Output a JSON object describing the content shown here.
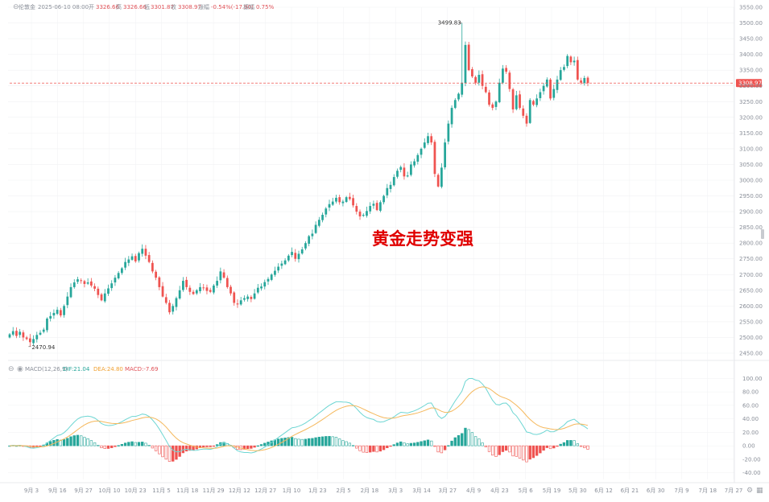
{
  "colors": {
    "up": "#26a69a",
    "down": "#ef5350",
    "dif": "#6ed6d3",
    "dea": "#f5b85c",
    "price_line": "#ef5350",
    "grid": "#f0f1f3",
    "axis_text": "#8a8f99",
    "headline": "#e00000"
  },
  "header": {
    "symbol": "伦敦金",
    "datetime": "2025-06-10 08:00",
    "open_label": "开",
    "open": "3326.66",
    "high_label": "高",
    "high": "3326.66",
    "low_label": "低",
    "low": "3301.87",
    "close_label": "收",
    "close": "3308.97",
    "change_label": "涨幅",
    "change": "-0.54%(-17.90)",
    "amplitude_label": "振幅",
    "amplitude": "0.75%"
  },
  "macd_header": {
    "name": "MACD(12,26,9)",
    "dif": "DIF:21.04",
    "dea": "DEA:24.80",
    "macd": "MACD:-7.69"
  },
  "headline": "黄金走势变强",
  "annotations": {
    "high": "3499.83",
    "low": "2470.94",
    "last_price": "3308.97"
  },
  "icons": [
    "chevron-icon",
    "eye-icon",
    "gear-icon",
    "scroll-handle-icon"
  ],
  "chart_data": [
    {
      "type": "candlestick",
      "title": "伦敦金",
      "ylim": [
        2450,
        3550
      ],
      "y_ticks": [
        "3550.00",
        "3500.00",
        "3450.00",
        "3400.00",
        "3350.00",
        "3300.00",
        "3250.00",
        "3200.00",
        "3150.00",
        "3100.00",
        "3050.00",
        "3000.00",
        "2950.00",
        "2900.00",
        "2850.00",
        "2800.00",
        "2750.00",
        "2700.00",
        "2650.00",
        "2600.00",
        "2550.00",
        "2500.00",
        "2450.00"
      ],
      "x_ticks": [
        "9月 3",
        "9月 16",
        "9月 27",
        "10月 10",
        "10月 23",
        "11月 5",
        "11月 18",
        "11月 29",
        "12月 12",
        "12月 27",
        "1月 10",
        "1月 23",
        "2月 5",
        "2月 18",
        "3月 3",
        "3月 14",
        "3月 27",
        "4月 9",
        "4月 23",
        "5月 6",
        "5月 19",
        "5月 30",
        "6月 12",
        "6月 21",
        "6月 30",
        "7月 9",
        "7月 18",
        "7月 27"
      ],
      "last_price": 3308.97,
      "marked_high": 3499.83,
      "marked_low": 2470.94,
      "close_series": [
        2510,
        2520,
        2505,
        2518,
        2500,
        2495,
        2485,
        2495,
        2508,
        2515,
        2525,
        2560,
        2568,
        2578,
        2588,
        2570,
        2600,
        2630,
        2660,
        2675,
        2685,
        2680,
        2670,
        2675,
        2665,
        2655,
        2635,
        2618,
        2640,
        2656,
        2672,
        2690,
        2705,
        2720,
        2740,
        2748,
        2758,
        2742,
        2768,
        2782,
        2760,
        2740,
        2710,
        2690,
        2660,
        2630,
        2610,
        2580,
        2600,
        2625,
        2650,
        2680,
        2660,
        2645,
        2638,
        2650,
        2660,
        2658,
        2648,
        2645,
        2665,
        2680,
        2710,
        2690,
        2660,
        2640,
        2610,
        2605,
        2618,
        2625,
        2630,
        2622,
        2640,
        2658,
        2662,
        2676,
        2686,
        2700,
        2712,
        2725,
        2735,
        2745,
        2760,
        2772,
        2750,
        2766,
        2780,
        2800,
        2822,
        2830,
        2858,
        2874,
        2890,
        2910,
        2924,
        2932,
        2944,
        2930,
        2932,
        2946,
        2940,
        2920,
        2900,
        2885,
        2890,
        2902,
        2918,
        2925,
        2905,
        2930,
        2950,
        2975,
        2985,
        3010,
        3030,
        3042,
        3012,
        3015,
        3050,
        3060,
        3080,
        3100,
        3120,
        3140,
        3120,
        3020,
        2980,
        3040,
        3120,
        3180,
        3230,
        3255,
        3275,
        3310,
        3430,
        3350,
        3330,
        3310,
        3335,
        3300,
        3280,
        3240,
        3230,
        3250,
        3310,
        3355,
        3345,
        3290,
        3225,
        3270,
        3230,
        3205,
        3180,
        3255,
        3240,
        3260,
        3280,
        3300,
        3320,
        3260,
        3290,
        3320,
        3350,
        3360,
        3395,
        3375,
        3380,
        3320,
        3310,
        3325,
        3309
      ]
    },
    {
      "type": "bar",
      "title": "MACD(12,26,9)",
      "ylim": [
        -50,
        110
      ],
      "y_ticks": [
        "100.00",
        "80.00",
        "60.00",
        "40.00",
        "20.00",
        "0.00",
        "-20.00",
        "-40.00"
      ],
      "series_names": [
        "DIF",
        "DEA",
        "MACD"
      ],
      "last_values": {
        "DIF": 21.04,
        "DEA": 24.8,
        "MACD": -7.69
      }
    }
  ]
}
